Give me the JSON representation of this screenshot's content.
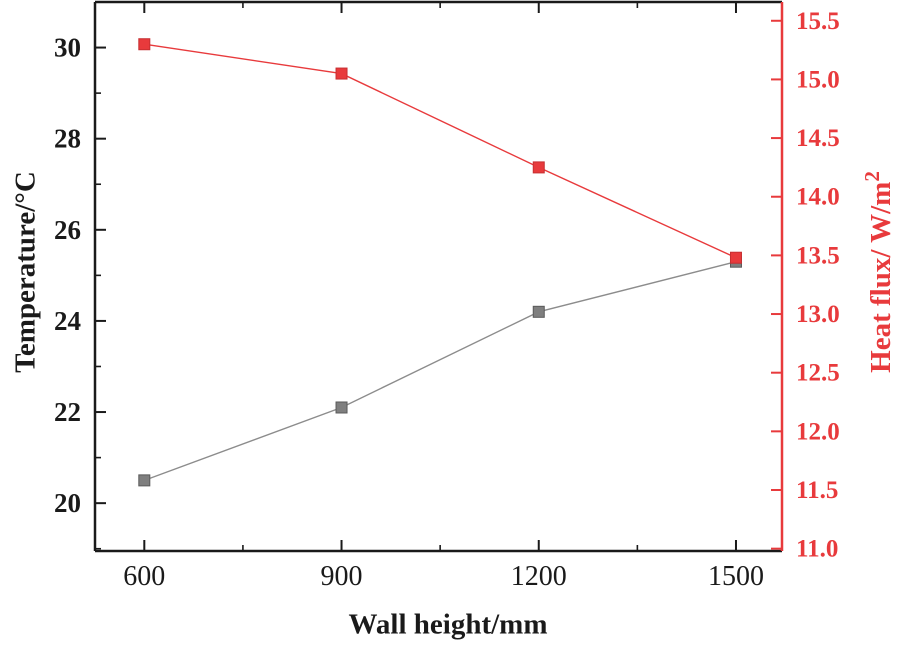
{
  "chart_data": {
    "type": "line",
    "title": "",
    "xlabel": "Wall height/mm",
    "x": [
      600,
      900,
      1200,
      1500
    ],
    "xlim": [
      525,
      1570
    ],
    "x_tick_values": [
      600,
      900,
      1200,
      1500
    ],
    "x_tick_labels": [
      "600",
      "900",
      "1200",
      "1500"
    ],
    "x_minor_ticks": [
      750,
      1050,
      1350
    ],
    "grid": false,
    "legend": "none",
    "background": "#ffffff",
    "axes": {
      "left": {
        "label": "Temperature/°C",
        "color": "#1a1a1a",
        "lim": [
          18.95,
          31.0
        ],
        "tick_values": [
          20,
          22,
          24,
          26,
          28,
          30
        ],
        "tick_labels": [
          "20",
          "22",
          "24",
          "26",
          "28",
          "30"
        ],
        "minor_ticks": [
          19,
          21,
          23,
          25,
          27,
          29
        ]
      },
      "right": {
        "label": "Heat flux/ W/m",
        "label_sup": "2",
        "color": "#e83a3c",
        "lim": [
          10.98,
          15.66
        ],
        "tick_values": [
          11.0,
          11.5,
          12.0,
          12.5,
          13.0,
          13.5,
          14.0,
          14.5,
          15.0,
          15.5
        ],
        "tick_labels": [
          "11.0",
          "11.5",
          "12.0",
          "12.5",
          "13.0",
          "13.5",
          "14.0",
          "14.5",
          "15.0",
          "15.5"
        ]
      }
    },
    "series": [
      {
        "name": "Temperature",
        "axis": "left",
        "line_color": "#8c8c8c",
        "marker_color": "#7f7f7f",
        "marker_edge": "#5a5a5a",
        "values": [
          20.5,
          22.1,
          24.2,
          25.3
        ]
      },
      {
        "name": "Heat flux",
        "axis": "right",
        "line_color": "#e83a3c",
        "marker_color": "#e83a3c",
        "marker_edge": "#c62f31",
        "values": [
          15.3,
          15.05,
          14.25,
          13.48
        ]
      }
    ]
  }
}
